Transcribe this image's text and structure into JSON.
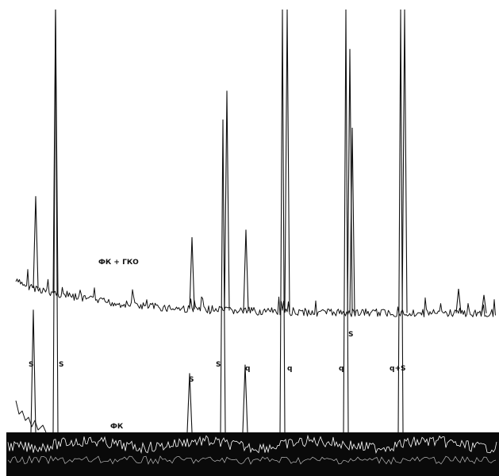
{
  "chart_data": [
    {
      "type": "line",
      "series": [
        {
          "name": "ФК + ГКО"
        }
      ],
      "peaks": [
        {
          "height": 0.33,
          "label": ""
        },
        {
          "height": 1.0,
          "label": ""
        },
        {
          "height": 0.24,
          "label": ""
        },
        {
          "height": 0.73,
          "label": ""
        },
        {
          "height": 0.27,
          "label": ""
        },
        {
          "height": 1.0,
          "label": ""
        },
        {
          "height": 0.87,
          "label": ""
        },
        {
          "height": 0.61,
          "label": ""
        },
        {
          "height": 1.0,
          "label": ""
        },
        {
          "height": 0.08,
          "label": ""
        },
        {
          "height": 0.06,
          "label": ""
        }
      ]
    },
    {
      "type": "line",
      "series": [
        {
          "name": "ФК"
        }
      ],
      "peaks": [
        {
          "height": 0.29,
          "label": "S"
        },
        {
          "height": 1.0,
          "label": "S"
        },
        {
          "height": 0.14,
          "label": "S"
        },
        {
          "height": 0.74,
          "label": "S"
        },
        {
          "height": 0.16,
          "label": "q"
        },
        {
          "height": 1.0,
          "label": "q"
        },
        {
          "height": 1.0,
          "label": "q"
        },
        {
          "height": 1.0,
          "label": "q+S"
        }
      ],
      "extra_labels": [
        "S"
      ]
    }
  ]
}
